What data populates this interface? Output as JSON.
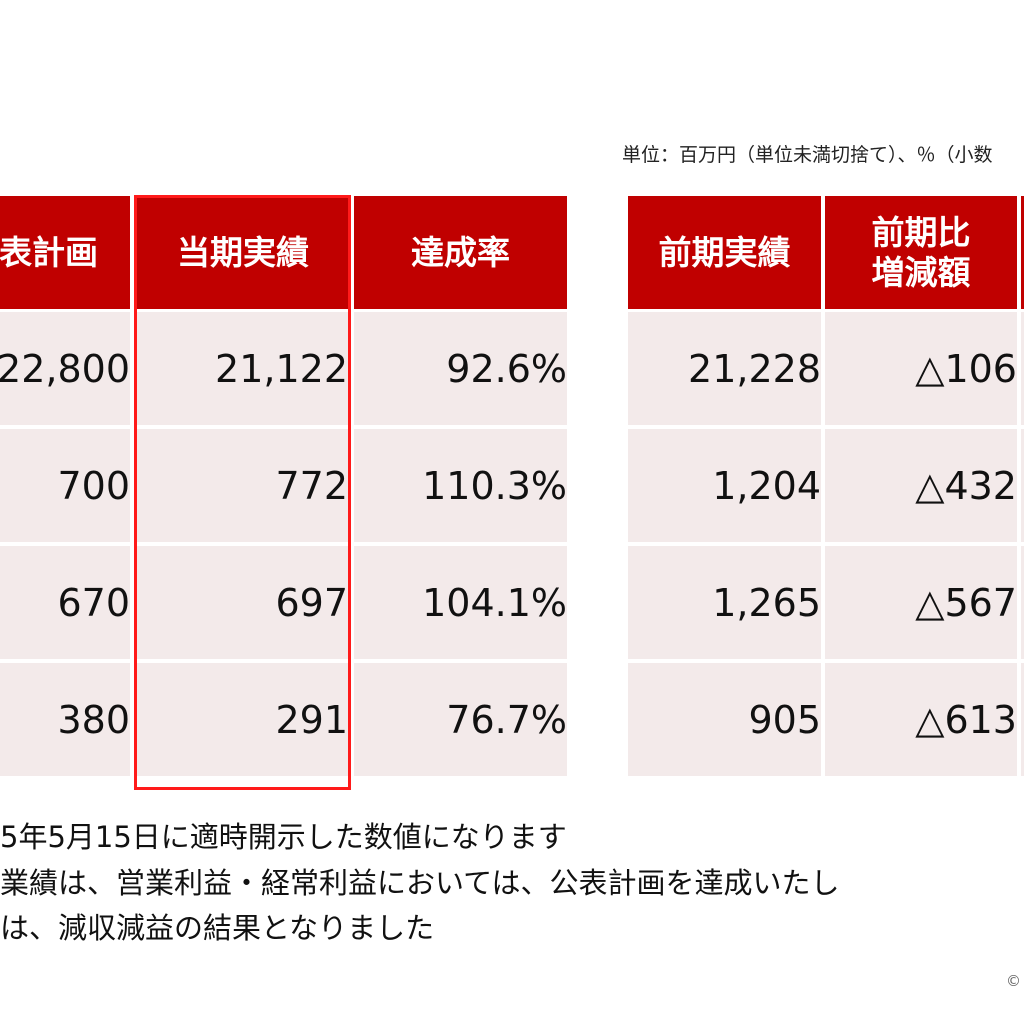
{
  "unit_note": "単位：百万円（単位未満切捨て）、％（小数",
  "columns": [
    {
      "label": "表計画"
    },
    {
      "label": "当期実績"
    },
    {
      "label": "達成率"
    },
    {
      "label": "前期実績"
    },
    {
      "label_line1": "前期比",
      "label_line2": "増減額"
    }
  ],
  "rows": [
    {
      "plan": "22,800",
      "actual": "21,122",
      "rate": "92.6%",
      "prev": "21,228",
      "diff": "△106"
    },
    {
      "plan": "700",
      "actual": "772",
      "rate": "110.3%",
      "prev": "1,204",
      "diff": "△432"
    },
    {
      "plan": "670",
      "actual": "697",
      "rate": "104.1%",
      "prev": "1,265",
      "diff": "△567"
    },
    {
      "plan": "380",
      "actual": "291",
      "rate": "76.7%",
      "prev": "905",
      "diff": "△613"
    }
  ],
  "notes": [
    "5年5月15日に適時開示した数値になります",
    "業績は、営業利益・経常利益においては、公表計画を達成いたし",
    "は、減収減益の結果となりました"
  ],
  "copyright": "©",
  "colors": {
    "header_bg": "#c00000",
    "cell_bg": "#f3eaea",
    "highlight_border": "#ff1a1a"
  }
}
